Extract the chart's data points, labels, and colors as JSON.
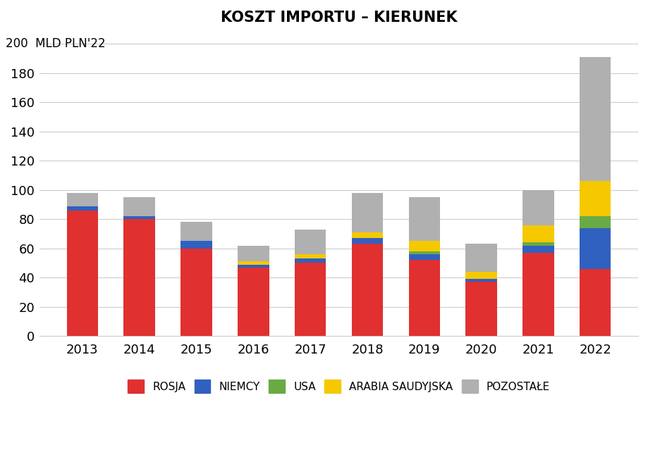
{
  "title": "KOSZT IMPORTU – KIERUNEK",
  "years": [
    2013,
    2014,
    2015,
    2016,
    2017,
    2018,
    2019,
    2020,
    2021,
    2022
  ],
  "rosja": [
    86,
    80,
    60,
    47,
    50,
    63,
    52,
    37,
    57,
    46
  ],
  "niemcy": [
    3,
    2,
    5,
    2,
    3,
    4,
    4,
    2,
    5,
    28
  ],
  "usa": [
    0,
    0,
    0,
    0,
    0,
    0,
    2,
    0,
    2,
    8
  ],
  "arabia_saudyjska": [
    0,
    0,
    0,
    2,
    3,
    4,
    7,
    5,
    12,
    24
  ],
  "pozostale": [
    9,
    13,
    13,
    11,
    17,
    27,
    30,
    19,
    24,
    85
  ],
  "colors": {
    "rosja": "#e03030",
    "niemcy": "#3060c0",
    "usa": "#6aaa45",
    "arabia_saudyjska": "#f5c800",
    "pozostale": "#b0b0b0"
  },
  "legend_labels": [
    "ROSJA",
    "NIEMCY",
    "USA",
    "ARABIA SAUDYJSKA",
    "POZOSTAŁE"
  ],
  "ylim": [
    0,
    205
  ],
  "yticks": [
    0,
    20,
    40,
    60,
    80,
    100,
    120,
    140,
    160,
    180,
    200
  ],
  "background_color": "#ffffff",
  "bar_width": 0.55
}
